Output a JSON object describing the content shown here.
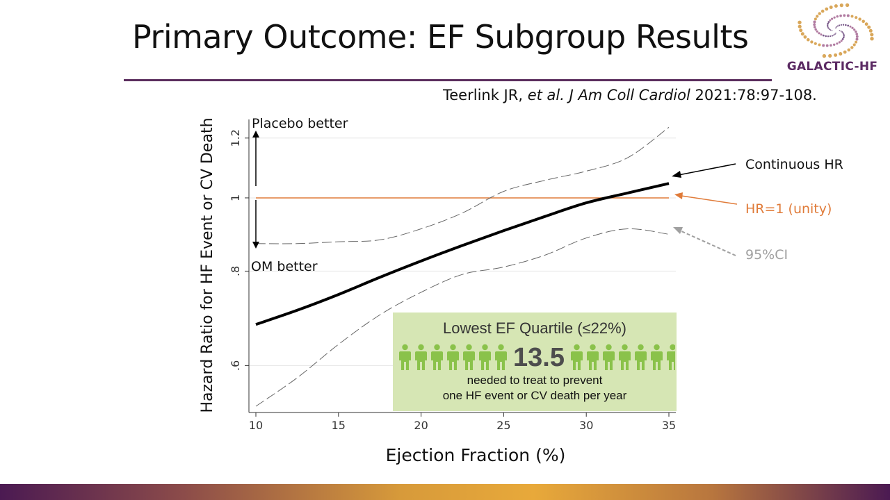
{
  "slide": {
    "title": "Primary Outcome: EF Subgroup Results",
    "citation_authors": "Teerlink JR, ",
    "citation_etal": "et al. J Am Coll Cardiol",
    "citation_ref": " 2021:78:97-108.",
    "logo_text": "GALACTIC-HF",
    "colors": {
      "rule": "#5a2d5d",
      "logo": "#5b2a63",
      "box": "#d6e6b4",
      "person": "#8ac24a"
    }
  },
  "chart_data": {
    "type": "line",
    "xlabel": "Ejection Fraction (%)",
    "ylabel": "Hazard Ratio for HF Event or CV Death",
    "x_ticks": [
      10,
      15,
      20,
      25,
      30,
      35
    ],
    "y_ticks": [
      {
        "value": 0.6,
        "label": ".6"
      },
      {
        "value": 0.8,
        "label": ".8"
      },
      {
        "value": 1.0,
        "label": "1"
      },
      {
        "value": 1.2,
        "label": "1.2"
      }
    ],
    "xlim": [
      10,
      35
    ],
    "ylim": [
      0.52,
      1.27
    ],
    "y_scale": "log",
    "grid": true,
    "series": [
      {
        "name": "Continuous HR",
        "color": "#000000",
        "style": "solid",
        "x": [
          10,
          12.5,
          15,
          17.5,
          20,
          22.5,
          25,
          27.5,
          30,
          32.5,
          35
        ],
        "y": [
          0.68,
          0.71,
          0.745,
          0.785,
          0.825,
          0.865,
          0.905,
          0.945,
          0.985,
          1.015,
          1.045
        ]
      },
      {
        "name": "HR=1 (unity)",
        "color": "#e07b39",
        "style": "solid",
        "x": [
          10,
          35
        ],
        "y": [
          1.0,
          1.0
        ]
      },
      {
        "name": "95%CI",
        "color": "#666666",
        "style": "dashed",
        "x": [
          10,
          12.5,
          15,
          17.5,
          20,
          22.5,
          25,
          27.5,
          30,
          32.5,
          35
        ],
        "y": [
          0.53,
          0.578,
          0.64,
          0.7,
          0.75,
          0.792,
          0.81,
          0.84,
          0.885,
          0.91,
          0.895
        ]
      },
      {
        "name": "95%CI",
        "color": "#666666",
        "style": "dashed",
        "x": [
          10,
          12.5,
          15,
          17.5,
          20,
          22.5,
          25,
          27.5,
          30,
          32.5,
          35
        ],
        "y": [
          0.87,
          0.87,
          0.875,
          0.88,
          0.91,
          0.955,
          1.02,
          1.055,
          1.085,
          1.13,
          1.24
        ]
      }
    ],
    "annotations": {
      "placebo_better": "Placebo better",
      "om_better": "OM better"
    },
    "labels": [
      {
        "text": "Continuous HR",
        "color": "#000000"
      },
      {
        "text": "HR=1 (unity)",
        "color": "#e07b39"
      },
      {
        "text": "95%CI",
        "color": "#999999"
      }
    ]
  },
  "nnt_box": {
    "title": "Lowest EF Quartile (≤22%)",
    "number": "13.5",
    "line1": "needed to treat to prevent",
    "line2": "one HF event or CV death per year"
  }
}
